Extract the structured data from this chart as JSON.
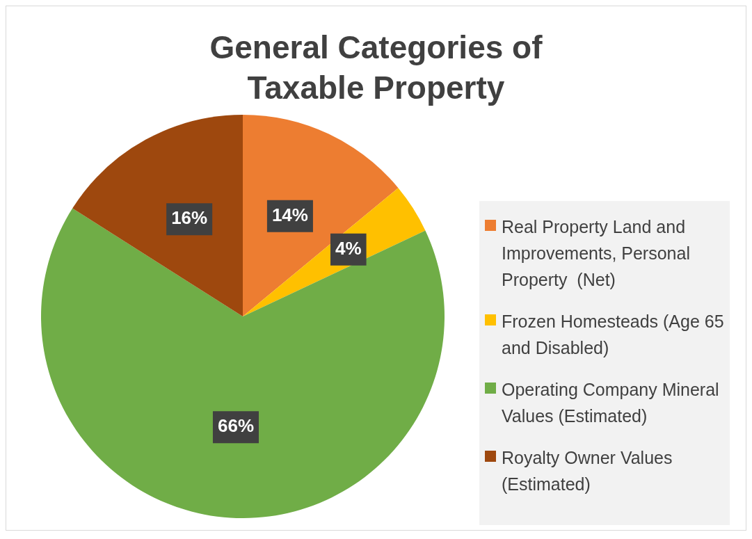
{
  "chart_data": {
    "type": "pie",
    "title": "General Categories of Taxable Property",
    "categories": [
      "Real Property Land and Improvements, Personal Property  (Net)",
      "Frozen Homesteads (Age 65 and Disabled)",
      "Operating Company Mineral Values (Estimated)",
      "Royalty Owner Values (Estimated)"
    ],
    "values": [
      14,
      4,
      66,
      16
    ],
    "colors": [
      "#ed7d31",
      "#ffc000",
      "#70ad47",
      "#9e480e"
    ],
    "value_labels": [
      "14%",
      "4%",
      "66%",
      "16%"
    ],
    "legend": "right"
  }
}
